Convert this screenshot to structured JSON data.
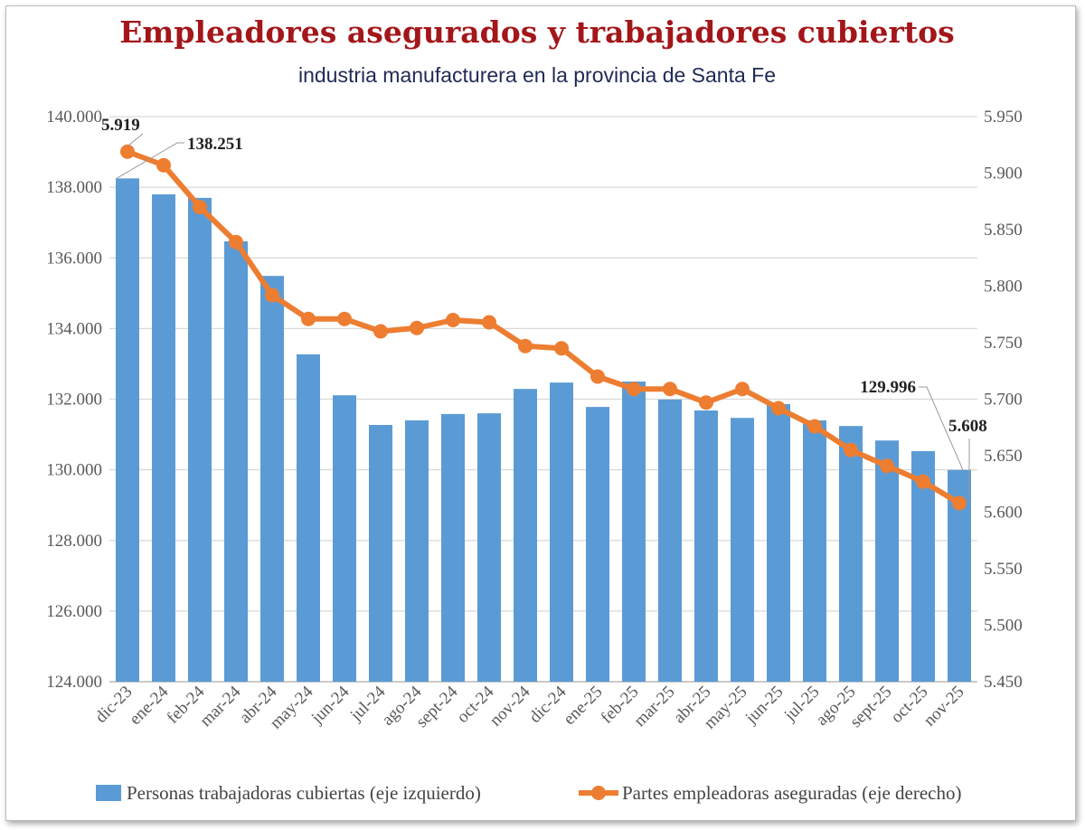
{
  "title": "Empleadores asegurados y trabajadores cubiertos",
  "subtitle": "industria manufacturera en la provincia de Santa Fe",
  "chart_data": {
    "type": "bar+line",
    "categories": [
      "dic-23",
      "ene-24",
      "feb-24",
      "mar-24",
      "abr-24",
      "may-24",
      "jun-24",
      "jul-24",
      "ago-24",
      "sept-24",
      "oct-24",
      "nov-24",
      "dic-24",
      "ene-25",
      "feb-25",
      "mar-25",
      "abr-25",
      "may-25",
      "jun-25",
      "jul-25",
      "ago-25",
      "sept-25",
      "oct-25",
      "nov-25"
    ],
    "series": [
      {
        "name": "Personas trabajadoras cubiertas (eje izquierdo)",
        "type": "bar",
        "axis": "left",
        "color": "#5b9bd5",
        "values": [
          138251,
          137800,
          137700,
          136470,
          135490,
          133270,
          132110,
          131270,
          131400,
          131580,
          131600,
          132290,
          132470,
          131780,
          132500,
          131990,
          131680,
          131470,
          131860,
          131400,
          131240,
          130830,
          130530,
          129996
        ]
      },
      {
        "name": "Partes empleadoras aseguradas (eje derecho)",
        "type": "line",
        "axis": "right",
        "color": "#ed7d31",
        "values": [
          5919,
          5907,
          5870,
          5839,
          5792,
          5771,
          5771,
          5760,
          5763,
          5770,
          5768,
          5747,
          5745,
          5720,
          5709,
          5709,
          5697,
          5709,
          5692,
          5676,
          5655,
          5641,
          5627,
          5608
        ]
      }
    ],
    "left_axis": {
      "ylim": [
        124000,
        140000
      ],
      "ticks": [
        "124.000",
        "126.000",
        "128.000",
        "130.000",
        "132.000",
        "134.000",
        "136.000",
        "138.000",
        "140.000"
      ]
    },
    "right_axis": {
      "ylim": [
        5450,
        5950
      ],
      "ticks": [
        "5.450",
        "5.500",
        "5.550",
        "5.600",
        "5.650",
        "5.700",
        "5.750",
        "5.800",
        "5.850",
        "5.900",
        "5.950"
      ]
    },
    "annotations": [
      {
        "text": "5.919",
        "series": 1,
        "index": 0
      },
      {
        "text": "138.251",
        "series": 0,
        "index": 0
      },
      {
        "text": "129.996",
        "series": 0,
        "index": 23
      },
      {
        "text": "5.608",
        "series": 1,
        "index": 23
      }
    ],
    "grid": true,
    "legend": "bottom"
  }
}
